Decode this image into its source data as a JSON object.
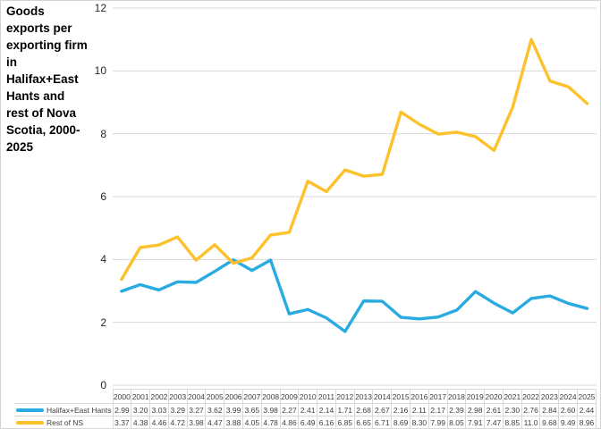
{
  "title": "Goods exports per exporting firm in Halifax+East Hants and rest of Nova Scotia, 2000-2025",
  "chart_data": {
    "type": "line",
    "title": "Goods exports per exporting firm in Halifax+East Hants and rest of Nova Scotia, 2000-2025",
    "categories": [
      "2000",
      "2001",
      "2002",
      "2003",
      "2004",
      "2005",
      "2006",
      "2007",
      "2008",
      "2009",
      "2010",
      "2011",
      "2012",
      "2013",
      "2014",
      "2015",
      "2016",
      "2017",
      "2018",
      "2019",
      "2020",
      "2021",
      "2022",
      "2023",
      "2024",
      "2025"
    ],
    "series": [
      {
        "name": "Halifax+East Hants",
        "color": "#29ABE2",
        "values": [
          2.99,
          3.2,
          3.03,
          3.29,
          3.27,
          3.62,
          3.99,
          3.65,
          3.98,
          2.27,
          2.41,
          2.14,
          1.71,
          2.68,
          2.67,
          2.16,
          2.11,
          2.17,
          2.39,
          2.98,
          2.61,
          2.3,
          2.76,
          2.84,
          2.6,
          2.44
        ],
        "cell_labels": [
          "2.99",
          "3.20",
          "3.03",
          "3.29",
          "3.27",
          "3.62",
          "3.99",
          "3.65",
          "3.98",
          "2.27",
          "2.41",
          "2.14",
          "1.71",
          "2.68",
          "2.67",
          "2.16",
          "2.11",
          "2.17",
          "2.39",
          "2.98",
          "2.61",
          "2.30",
          "2.76",
          "2.84",
          "2.60",
          "2.44"
        ]
      },
      {
        "name": "Rest of NS",
        "color": "#FCC12B",
        "values": [
          3.37,
          4.38,
          4.46,
          4.72,
          3.98,
          4.47,
          3.88,
          4.05,
          4.78,
          4.86,
          6.49,
          6.16,
          6.85,
          6.65,
          6.71,
          8.69,
          8.3,
          7.99,
          8.05,
          7.91,
          7.47,
          8.85,
          11.0,
          9.68,
          9.49,
          8.96
        ],
        "cell_labels": [
          "3.37",
          "4.38",
          "4.46",
          "4.72",
          "3.98",
          "4.47",
          "3.88",
          "4.05",
          "4.78",
          "4.86",
          "6.49",
          "6.16",
          "6.85",
          "6.65",
          "6.71",
          "8.69",
          "8.30",
          "7.99",
          "8.05",
          "7.91",
          "7.47",
          "8.85",
          "11.0",
          "9.68",
          "9.49",
          "8.96"
        ]
      }
    ],
    "xlabel": "",
    "ylabel": "",
    "ylim": [
      0,
      12
    ],
    "yticks": [
      0,
      2,
      4,
      6,
      8,
      10,
      12
    ],
    "grid": true,
    "gridline_color": "#D9D9D9",
    "legend_position": "bottom-left-table"
  }
}
